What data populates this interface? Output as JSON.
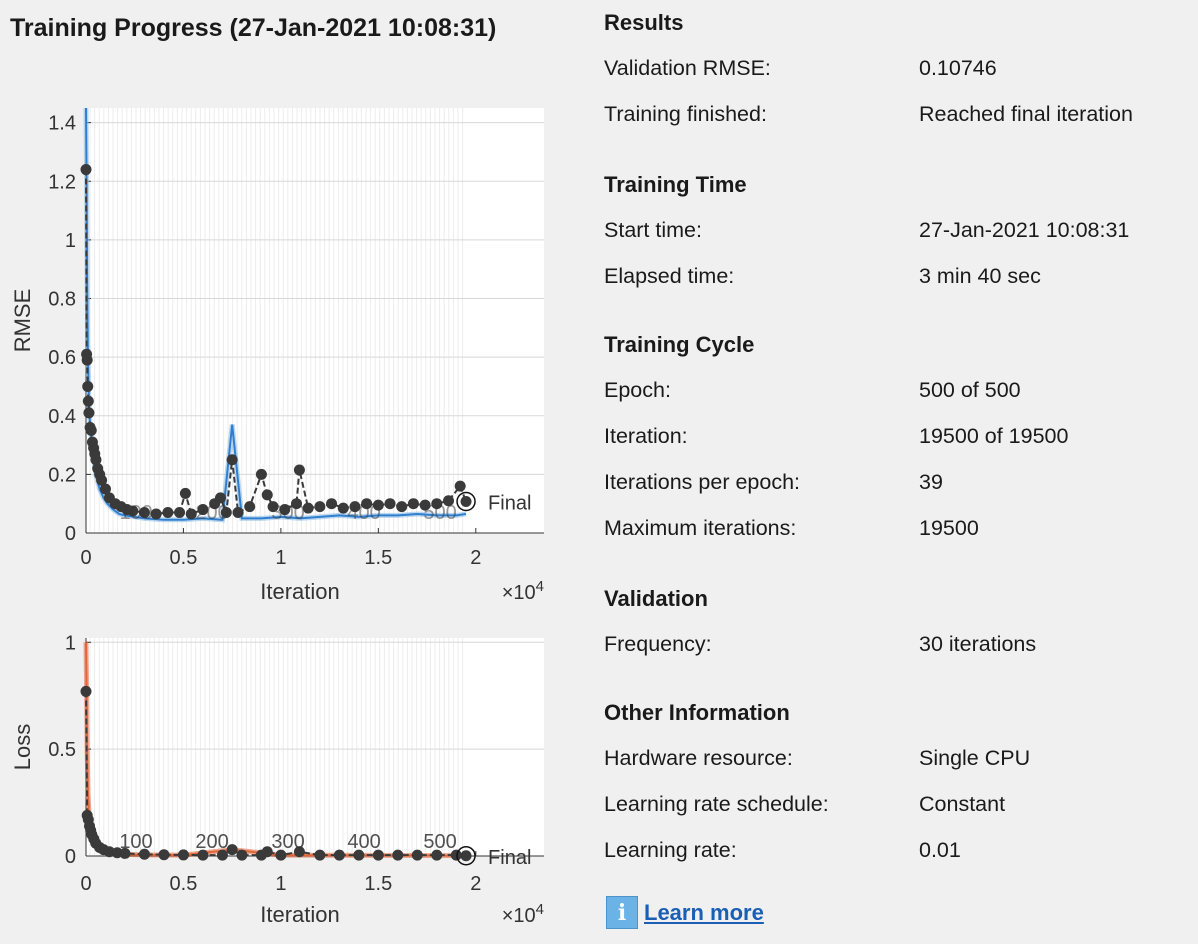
{
  "window": {
    "title": "Training Progress (27-Jan-2021 10:08:31)"
  },
  "colors": {
    "rmse_training": "#2f7fd0",
    "rmse_smoothed": "#86b8e6",
    "loss_training": "#e0663a",
    "validation": "#3a3a3a",
    "grid": "#d8d8d8",
    "plot_bg": "#ffffff"
  },
  "chart_data": [
    {
      "type": "line",
      "ylabel": "RMSE",
      "xlabel": "Iteration",
      "x_exponent_label": "×10",
      "x_exponent_power": "4",
      "ylim": [
        0,
        1.45
      ],
      "xlim": [
        0,
        23500
      ],
      "yticks": [
        0,
        0.2,
        0.4,
        0.6,
        0.8,
        1,
        1.2,
        1.4
      ],
      "ytick_labels": [
        "0",
        "0.2",
        "0.4",
        "0.6",
        "0.8",
        "1",
        "1.2",
        "1.4"
      ],
      "xticks": [
        0,
        5000,
        10000,
        15000,
        20000
      ],
      "xtick_labels": [
        "0",
        "0.5",
        "1",
        "1.5",
        "2"
      ],
      "epoch_labels": [
        "100",
        "200",
        "300",
        "400",
        "500"
      ],
      "epoch_label_x": [
        3900,
        7800,
        11700,
        15600,
        19500
      ],
      "final_label": "Final",
      "final_x": 19500,
      "final_value": 0.10746,
      "series": [
        {
          "role": "training",
          "x": [
            0,
            30,
            60,
            100,
            150,
            200,
            300,
            400,
            500,
            700,
            900,
            1100,
            1400,
            1700,
            2000,
            2500,
            3000,
            4000,
            5000,
            6000,
            7000,
            7500,
            8000,
            9000,
            10000,
            11000,
            12000,
            13000,
            14000,
            15000,
            16000,
            17000,
            18000,
            19000,
            19500
          ],
          "values": [
            1.45,
            1.2,
            0.85,
            0.6,
            0.45,
            0.38,
            0.3,
            0.25,
            0.2,
            0.15,
            0.12,
            0.1,
            0.08,
            0.065,
            0.06,
            0.055,
            0.05,
            0.045,
            0.045,
            0.05,
            0.045,
            0.37,
            0.05,
            0.05,
            0.055,
            0.05,
            0.055,
            0.06,
            0.055,
            0.06,
            0.06,
            0.065,
            0.06,
            0.06,
            0.065
          ]
        },
        {
          "role": "validation",
          "x": [
            0,
            30,
            60,
            90,
            120,
            150,
            210,
            270,
            330,
            390,
            450,
            510,
            600,
            700,
            800,
            1000,
            1200,
            1500,
            1800,
            2100,
            2400,
            3000,
            3600,
            4200,
            4800,
            5100,
            5400,
            6000,
            6600,
            6900,
            7200,
            7500,
            7800,
            8400,
            9000,
            9300,
            9600,
            10200,
            10800,
            10950,
            11400,
            12000,
            12600,
            13200,
            13800,
            14400,
            15000,
            15600,
            16200,
            16800,
            17400,
            18000,
            18600,
            19200,
            19500
          ],
          "values": [
            1.24,
            0.61,
            0.59,
            0.5,
            0.45,
            0.41,
            0.36,
            0.35,
            0.31,
            0.29,
            0.27,
            0.25,
            0.22,
            0.2,
            0.18,
            0.15,
            0.12,
            0.1,
            0.09,
            0.08,
            0.075,
            0.07,
            0.065,
            0.07,
            0.07,
            0.135,
            0.065,
            0.08,
            0.1,
            0.12,
            0.07,
            0.25,
            0.07,
            0.09,
            0.2,
            0.13,
            0.09,
            0.08,
            0.1,
            0.215,
            0.085,
            0.09,
            0.1,
            0.085,
            0.09,
            0.1,
            0.095,
            0.1,
            0.09,
            0.1,
            0.095,
            0.1,
            0.11,
            0.16,
            0.10746
          ]
        }
      ]
    },
    {
      "type": "line",
      "ylabel": "Loss",
      "xlabel": "Iteration",
      "x_exponent_label": "×10",
      "x_exponent_power": "4",
      "ylim": [
        0,
        1.02
      ],
      "xlim": [
        0,
        23500
      ],
      "yticks": [
        0,
        0.5,
        1
      ],
      "ytick_labels": [
        "0",
        "0.5",
        "1"
      ],
      "xticks": [
        0,
        5000,
        10000,
        15000,
        20000
      ],
      "xtick_labels": [
        "0",
        "0.5",
        "1",
        "1.5",
        "2"
      ],
      "epoch_labels": [
        "100",
        "200",
        "300",
        "400",
        "500"
      ],
      "epoch_label_x": [
        3900,
        7800,
        11700,
        15600,
        19500
      ],
      "final_label": "Final",
      "final_x": 19500,
      "final_value": 0.001,
      "series": [
        {
          "role": "training",
          "x": [
            0,
            30,
            60,
            100,
            150,
            200,
            300,
            400,
            600,
            900,
            1200,
            1600,
            2000,
            3000,
            5000,
            7500,
            10000,
            15000,
            19500
          ],
          "values": [
            1.0,
            0.8,
            0.5,
            0.3,
            0.2,
            0.15,
            0.1,
            0.07,
            0.04,
            0.025,
            0.015,
            0.01,
            0.008,
            0.005,
            0.004,
            0.03,
            0.004,
            0.003,
            0.002
          ]
        },
        {
          "role": "validation",
          "x": [
            0,
            60,
            120,
            180,
            240,
            300,
            400,
            500,
            700,
            900,
            1200,
            1600,
            2000,
            3000,
            4000,
            5000,
            6000,
            7000,
            7500,
            8000,
            9000,
            9300,
            10000,
            10950,
            12000,
            13000,
            14000,
            15000,
            16000,
            17000,
            18000,
            19000,
            19500
          ],
          "values": [
            0.77,
            0.19,
            0.17,
            0.14,
            0.12,
            0.1,
            0.08,
            0.06,
            0.04,
            0.03,
            0.02,
            0.015,
            0.012,
            0.008,
            0.006,
            0.005,
            0.004,
            0.004,
            0.03,
            0.004,
            0.004,
            0.02,
            0.004,
            0.02,
            0.004,
            0.004,
            0.004,
            0.004,
            0.004,
            0.004,
            0.004,
            0.004,
            0.001
          ]
        }
      ]
    }
  ],
  "results": {
    "heading": "Results",
    "rows": [
      {
        "label": "Validation RMSE:",
        "value": "0.10746"
      },
      {
        "label": "Training finished:",
        "value": "Reached final iteration"
      }
    ]
  },
  "training_time": {
    "heading": "Training Time",
    "rows": [
      {
        "label": "Start time:",
        "value": "27-Jan-2021 10:08:31"
      },
      {
        "label": "Elapsed time:",
        "value": "3 min 40 sec"
      }
    ]
  },
  "training_cycle": {
    "heading": "Training Cycle",
    "rows": [
      {
        "label": "Epoch:",
        "value": "500 of 500"
      },
      {
        "label": "Iteration:",
        "value": "19500 of 19500"
      },
      {
        "label": "Iterations per epoch:",
        "value": "39"
      },
      {
        "label": "Maximum iterations:",
        "value": "19500"
      }
    ]
  },
  "validation": {
    "heading": "Validation",
    "rows": [
      {
        "label": "Frequency:",
        "value": "30 iterations"
      }
    ]
  },
  "other": {
    "heading": "Other Information",
    "rows": [
      {
        "label": "Hardware resource:",
        "value": "Single CPU"
      },
      {
        "label": "Learning rate schedule:",
        "value": "Constant"
      },
      {
        "label": "Learning rate:",
        "value": "0.01"
      }
    ]
  },
  "help": {
    "icon": "info-icon",
    "icon_glyph": "i",
    "link_label": "Learn more"
  }
}
